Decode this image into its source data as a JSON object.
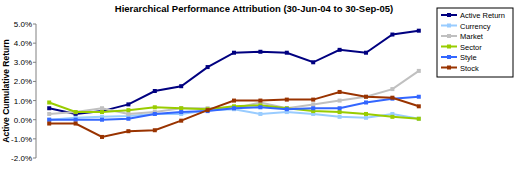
{
  "chart_data": {
    "type": "line",
    "title": "Hierarchical Performance Attribution (30-Jun-04 to 30-Sep-05)",
    "y_label": "Active Cumulative Return",
    "categories": [
      null,
      null,
      null,
      null,
      null,
      null,
      null,
      null,
      null,
      null,
      null,
      null,
      null,
      null,
      null
    ],
    "ylim": [
      -2,
      5
    ],
    "yticks": [
      {
        "value": -2,
        "label": "-2.0%"
      },
      {
        "value": -1,
        "label": "-1.0%"
      },
      {
        "value": 0,
        "label": "0.0%"
      },
      {
        "value": 1,
        "label": "1.0%"
      },
      {
        "value": 2,
        "label": "2.0%"
      },
      {
        "value": 3,
        "label": "3.0%"
      },
      {
        "value": 4,
        "label": "4.0%"
      },
      {
        "value": 5,
        "label": "5.0%"
      }
    ],
    "grid": false,
    "legend": "right",
    "tick_labels": "y",
    "marker": "square",
    "line_style": "solid",
    "series": [
      {
        "name": "Active Return",
        "color": "#000080",
        "values": [
          0.6,
          0.3,
          0.45,
          0.8,
          1.5,
          1.75,
          2.75,
          3.5,
          3.55,
          3.5,
          3.0,
          3.65,
          3.5,
          4.45,
          4.65
        ]
      },
      {
        "name": "Currency",
        "color": "#99ccff",
        "values": [
          0.0,
          0.1,
          0.15,
          0.2,
          0.3,
          0.3,
          0.5,
          0.55,
          0.3,
          0.4,
          0.3,
          0.15,
          0.1,
          0.3,
          0.05
        ]
      },
      {
        "name": "Market",
        "color": "#c0c0c0",
        "values": [
          0.3,
          0.4,
          0.6,
          0.3,
          0.4,
          0.6,
          0.6,
          0.6,
          0.9,
          0.6,
          0.8,
          1.0,
          1.2,
          1.6,
          2.55
        ]
      },
      {
        "name": "Sector",
        "color": "#99cc00",
        "values": [
          0.9,
          0.4,
          0.4,
          0.5,
          0.65,
          0.6,
          0.55,
          0.7,
          0.75,
          0.6,
          0.45,
          0.4,
          0.3,
          0.15,
          0.05
        ]
      },
      {
        "name": "Style",
        "color": "#3366ff",
        "values": [
          0.0,
          0.0,
          0.0,
          0.05,
          0.3,
          0.4,
          0.45,
          0.6,
          0.65,
          0.55,
          0.6,
          0.6,
          0.9,
          1.1,
          1.2
        ]
      },
      {
        "name": "Stock",
        "color": "#993300",
        "values": [
          -0.2,
          -0.2,
          -0.9,
          -0.6,
          -0.55,
          -0.05,
          0.5,
          1.0,
          1.0,
          1.05,
          1.05,
          1.45,
          1.2,
          1.15,
          0.7
        ]
      }
    ]
  }
}
